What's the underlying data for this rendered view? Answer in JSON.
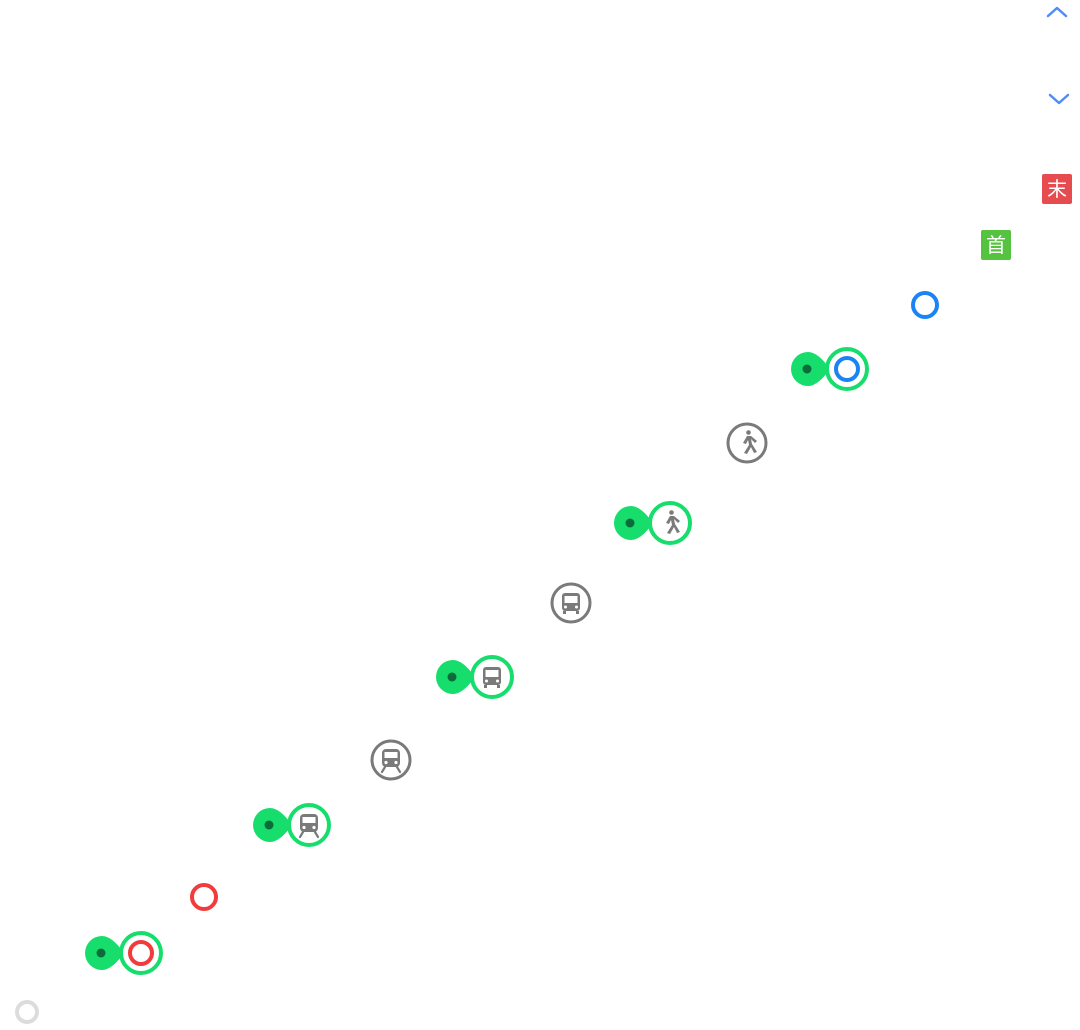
{
  "nav": {
    "scroll_up_icon": "chevron-up-icon",
    "scroll_down_icon": "chevron-down-icon",
    "accent": "#4f8df6"
  },
  "badges": {
    "last_label": "末",
    "last_color": "#e54b4f",
    "first_label": "首",
    "first_color": "#55c33f"
  },
  "colors": {
    "selected_green": "#17dd6d",
    "selected_dot": "#0c6b3a",
    "blue_ring": "#1a84f4",
    "red_ring": "#f03c3c",
    "gray_icon": "#7a7a7a",
    "light_ring": "#dcdcdc"
  },
  "markers": [
    {
      "kind": "blue-ring",
      "icon": "ring"
    },
    {
      "kind": "selected",
      "icon": "blue-ring"
    },
    {
      "kind": "gray",
      "icon": "walk-icon"
    },
    {
      "kind": "selected",
      "icon": "walk-icon"
    },
    {
      "kind": "gray",
      "icon": "bus-icon"
    },
    {
      "kind": "selected",
      "icon": "bus-icon"
    },
    {
      "kind": "gray",
      "icon": "train-icon"
    },
    {
      "kind": "selected",
      "icon": "train-icon"
    },
    {
      "kind": "red-ring",
      "icon": "ring"
    },
    {
      "kind": "selected",
      "icon": "red-ring"
    },
    {
      "kind": "light-ring",
      "icon": "ring"
    }
  ]
}
